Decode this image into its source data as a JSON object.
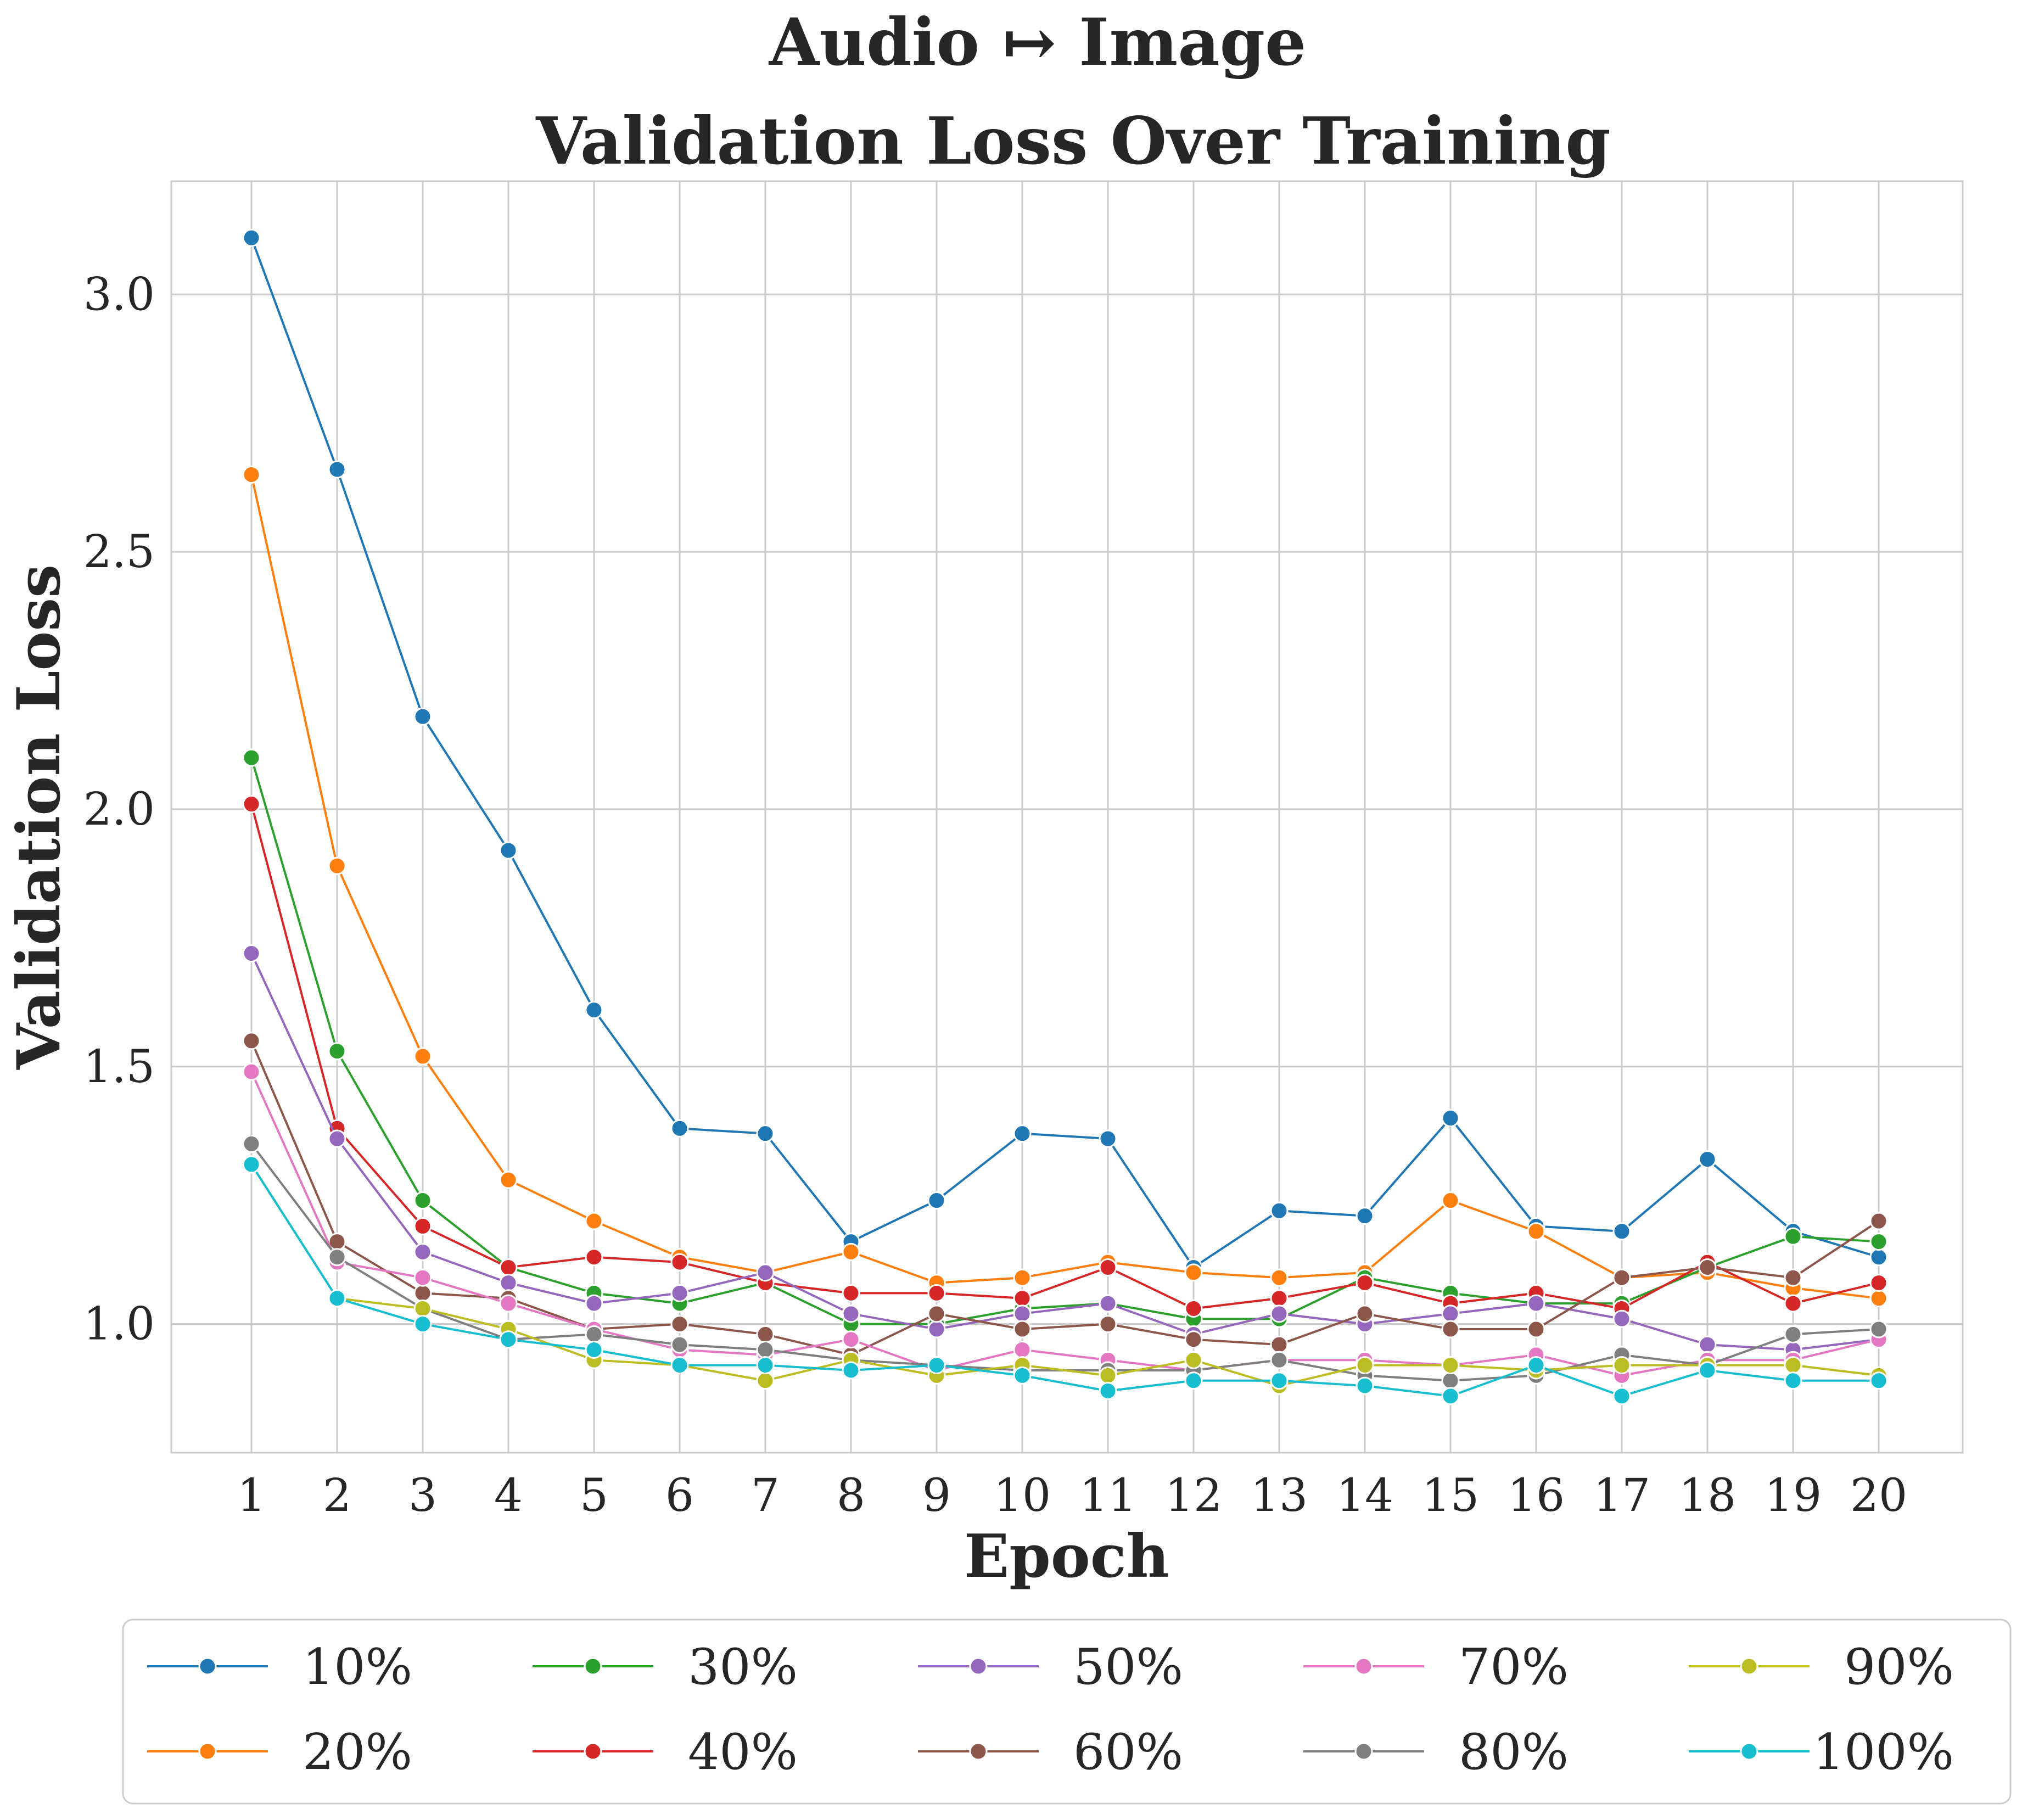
{
  "chart_data": {
    "type": "line",
    "title": "Audio ↦ Image",
    "subtitle": "Validation Loss Over Training",
    "xlabel": "Epoch",
    "ylabel": "Validation Loss",
    "x": [
      1,
      2,
      3,
      4,
      5,
      6,
      7,
      8,
      9,
      10,
      11,
      12,
      13,
      14,
      15,
      16,
      17,
      18,
      19,
      20
    ],
    "x_tick_labels": [
      "1",
      "2",
      "3",
      "4",
      "5",
      "6",
      "7",
      "8",
      "9",
      "10",
      "11",
      "12",
      "13",
      "14",
      "15",
      "16",
      "17",
      "18",
      "19",
      "20"
    ],
    "ylim": [
      0.75,
      3.22
    ],
    "y_ticks": [
      1.0,
      1.5,
      2.0,
      2.5,
      3.0
    ],
    "y_tick_labels": [
      "1.0",
      "1.5",
      "2.0",
      "2.5",
      "3.0"
    ],
    "grid": true,
    "legend_placement": "bottom",
    "legend_columns": 5,
    "series": [
      {
        "name": "10%",
        "color": "#1f77b4",
        "values": [
          3.11,
          2.66,
          2.18,
          1.92,
          1.61,
          1.38,
          1.37,
          1.16,
          1.24,
          1.37,
          1.36,
          1.11,
          1.22,
          1.21,
          1.4,
          1.19,
          1.18,
          1.32,
          1.18,
          1.13
        ]
      },
      {
        "name": "20%",
        "color": "#ff7f0e",
        "values": [
          2.65,
          1.89,
          1.52,
          1.28,
          1.2,
          1.13,
          1.1,
          1.14,
          1.08,
          1.09,
          1.12,
          1.1,
          1.09,
          1.1,
          1.24,
          1.18,
          1.09,
          1.1,
          1.07,
          1.05
        ]
      },
      {
        "name": "30%",
        "color": "#2ca02c",
        "values": [
          2.1,
          1.53,
          1.24,
          1.11,
          1.06,
          1.04,
          1.08,
          1.0,
          1.0,
          1.03,
          1.04,
          1.01,
          1.01,
          1.09,
          1.06,
          1.04,
          1.04,
          1.11,
          1.17,
          1.16
        ]
      },
      {
        "name": "40%",
        "color": "#d62728",
        "values": [
          2.01,
          1.38,
          1.19,
          1.11,
          1.13,
          1.12,
          1.08,
          1.06,
          1.06,
          1.05,
          1.11,
          1.03,
          1.05,
          1.08,
          1.04,
          1.06,
          1.03,
          1.12,
          1.04,
          1.08
        ]
      },
      {
        "name": "50%",
        "color": "#9467bd",
        "values": [
          1.72,
          1.36,
          1.14,
          1.08,
          1.04,
          1.06,
          1.1,
          1.02,
          0.99,
          1.02,
          1.04,
          0.98,
          1.02,
          1.0,
          1.02,
          1.04,
          1.01,
          0.96,
          0.95,
          0.97
        ]
      },
      {
        "name": "60%",
        "color": "#8c564b",
        "values": [
          1.55,
          1.16,
          1.06,
          1.05,
          0.99,
          1.0,
          0.98,
          0.94,
          1.02,
          0.99,
          1.0,
          0.97,
          0.96,
          1.02,
          0.99,
          0.99,
          1.09,
          1.11,
          1.09,
          1.2
        ]
      },
      {
        "name": "70%",
        "color": "#e377c2",
        "values": [
          1.49,
          1.12,
          1.09,
          1.04,
          0.99,
          0.95,
          0.94,
          0.97,
          0.91,
          0.95,
          0.93,
          0.91,
          0.93,
          0.93,
          0.92,
          0.94,
          0.9,
          0.93,
          0.93,
          0.97
        ]
      },
      {
        "name": "80%",
        "color": "#7f7f7f",
        "values": [
          1.35,
          1.13,
          1.03,
          0.97,
          0.98,
          0.96,
          0.95,
          0.93,
          0.92,
          0.91,
          0.91,
          0.91,
          0.93,
          0.9,
          0.89,
          0.9,
          0.94,
          0.92,
          0.98,
          0.99
        ]
      },
      {
        "name": "90%",
        "color": "#bcbd22",
        "values": [
          1.31,
          1.05,
          1.03,
          0.99,
          0.93,
          0.92,
          0.89,
          0.93,
          0.9,
          0.92,
          0.9,
          0.93,
          0.88,
          0.92,
          0.92,
          0.91,
          0.92,
          0.92,
          0.92,
          0.9
        ]
      },
      {
        "name": "100%",
        "color": "#17becf",
        "values": [
          1.31,
          1.05,
          1.0,
          0.97,
          0.95,
          0.92,
          0.92,
          0.91,
          0.92,
          0.9,
          0.87,
          0.89,
          0.89,
          0.88,
          0.86,
          0.92,
          0.86,
          0.91,
          0.89,
          0.89
        ]
      }
    ]
  },
  "colors": {
    "grid": "#cccccc",
    "axes_frame": "#cccccc",
    "marker_edge": "#ffffff",
    "text": "#262626"
  }
}
